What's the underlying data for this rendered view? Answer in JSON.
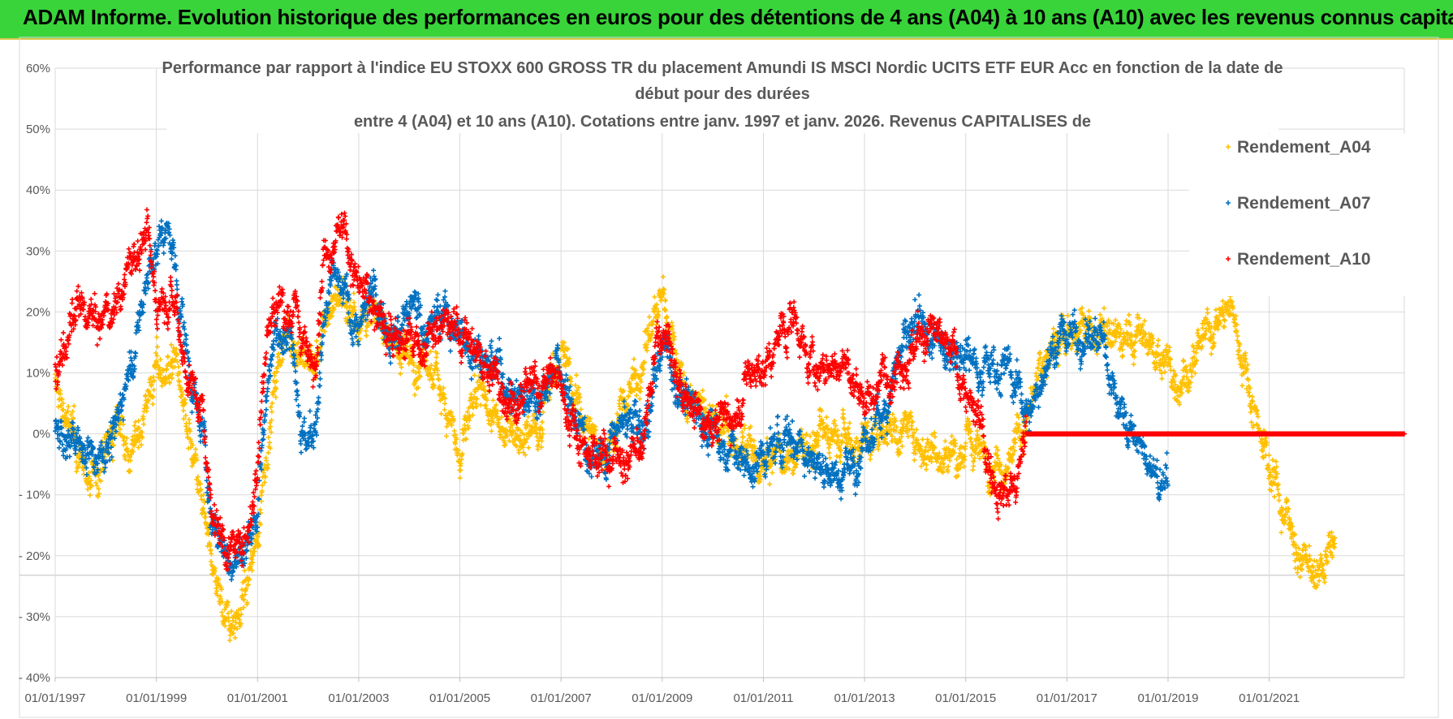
{
  "banner": {
    "title": "ADAM Informe. Evolution historique des performances en euros pour des détentions de 4 ans (A04) à 10 ans (A10) avec les revenus connus capitalisés"
  },
  "chart_data": {
    "type": "scatter",
    "title_lines": [
      "Performance par rapport à l'indice EU STOXX 600 GROSS TR  du placement Amundi IS MSCI Nordic UCITS ETF EUR Acc  en fonction de la date de",
      "début pour des durées",
      "entre 4 (A04) et 10 ans (A10).  Cotations entre janv. 1997 et janv. 2026. Revenus CAPITALISES de"
    ],
    "xlabel": "",
    "ylabel": "",
    "xlim": [
      1997.0,
      2023.67
    ],
    "ylim": [
      -40,
      60
    ],
    "x_ticks": [
      1997,
      1999,
      2001,
      2003,
      2005,
      2007,
      2009,
      2011,
      2013,
      2015,
      2017,
      2019,
      2021
    ],
    "x_tick_labels": [
      "01/01/1997",
      "01/01/1999",
      "01/01/2001",
      "01/01/2003",
      "01/01/2005",
      "01/01/2007",
      "01/01/2009",
      "01/01/2011",
      "01/01/2013",
      "01/01/2015",
      "01/01/2017",
      "01/01/2019",
      "01/01/2021"
    ],
    "y_ticks": [
      60,
      50,
      40,
      30,
      20,
      10,
      0,
      -10,
      -20,
      -30,
      -40
    ],
    "y_tick_labels": [
      "60%",
      "50%",
      "40%",
      "30%",
      "20%",
      "10%",
      "0%",
      "- 10%",
      "- 20%",
      "- 30%",
      "- 40%"
    ],
    "grid": true,
    "legend_position": "top-right",
    "marker": "+",
    "series": [
      {
        "name": "Rendement_A04",
        "color": "#ffc000",
        "start": 1997.0,
        "end": 2022.3,
        "anchors": [
          [
            1997.0,
            8
          ],
          [
            1997.4,
            -2
          ],
          [
            1997.7,
            -8
          ],
          [
            1998.0,
            -4
          ],
          [
            1998.3,
            3
          ],
          [
            1998.5,
            -5
          ],
          [
            1998.8,
            6
          ],
          [
            1999.0,
            10
          ],
          [
            1999.4,
            12
          ],
          [
            1999.6,
            0
          ],
          [
            1999.8,
            -8
          ],
          [
            2000.0,
            -18
          ],
          [
            2000.3,
            -28
          ],
          [
            2000.5,
            -30
          ],
          [
            2000.8,
            -26
          ],
          [
            2001.0,
            -16
          ],
          [
            2001.2,
            0
          ],
          [
            2001.4,
            10
          ],
          [
            2001.6,
            17
          ],
          [
            2001.9,
            12
          ],
          [
            2002.2,
            12
          ],
          [
            2002.4,
            20
          ],
          [
            2002.6,
            24
          ],
          [
            2002.9,
            20
          ],
          [
            2003.2,
            20
          ],
          [
            2003.5,
            18
          ],
          [
            2003.8,
            14
          ],
          [
            2004.2,
            12
          ],
          [
            2004.6,
            8
          ],
          [
            2004.8,
            5
          ],
          [
            2005.0,
            -5
          ],
          [
            2005.2,
            3
          ],
          [
            2005.5,
            5
          ],
          [
            2005.8,
            0
          ],
          [
            2006.0,
            3
          ],
          [
            2006.3,
            0
          ],
          [
            2006.6,
            3
          ],
          [
            2006.8,
            10
          ],
          [
            2007.0,
            14
          ],
          [
            2007.3,
            5
          ],
          [
            2007.6,
            0
          ],
          [
            2007.9,
            -3
          ],
          [
            2008.2,
            4
          ],
          [
            2008.5,
            10
          ],
          [
            2008.8,
            18
          ],
          [
            2009.0,
            22
          ],
          [
            2009.2,
            16
          ],
          [
            2009.5,
            6
          ],
          [
            2009.9,
            3
          ],
          [
            2010.2,
            0
          ],
          [
            2010.5,
            -2
          ],
          [
            2010.8,
            -5
          ],
          [
            2011.0,
            -6
          ],
          [
            2011.3,
            -4
          ],
          [
            2011.6,
            -3
          ],
          [
            2011.9,
            -2
          ],
          [
            2012.2,
            0
          ],
          [
            2012.5,
            3
          ],
          [
            2012.8,
            -1
          ],
          [
            2013.1,
            0
          ],
          [
            2013.5,
            2
          ],
          [
            2013.9,
            0
          ],
          [
            2014.3,
            -2
          ],
          [
            2014.7,
            -3
          ],
          [
            2015.1,
            -2
          ],
          [
            2015.5,
            -4
          ],
          [
            2015.9,
            -3
          ],
          [
            2016.2,
            2
          ],
          [
            2016.5,
            10
          ],
          [
            2016.9,
            18
          ],
          [
            2017.2,
            16
          ],
          [
            2017.5,
            17
          ],
          [
            2017.8,
            16
          ],
          [
            2018.1,
            15
          ],
          [
            2018.5,
            16
          ],
          [
            2018.9,
            12
          ],
          [
            2019.2,
            10
          ],
          [
            2019.6,
            12
          ],
          [
            2019.9,
            18
          ],
          [
            2020.2,
            20
          ],
          [
            2020.4,
            16
          ],
          [
            2020.6,
            8
          ],
          [
            2020.8,
            2
          ],
          [
            2021.0,
            -5
          ],
          [
            2021.3,
            -12
          ],
          [
            2021.6,
            -20
          ],
          [
            2021.9,
            -24
          ],
          [
            2022.1,
            -22
          ],
          [
            2022.3,
            -17
          ]
        ]
      },
      {
        "name": "Rendement_A07",
        "color": "#0070c0",
        "start": 1997.0,
        "end": 2019.0,
        "anchors": [
          [
            1997.0,
            0
          ],
          [
            1997.2,
            -3
          ],
          [
            1997.4,
            0
          ],
          [
            1997.6,
            -3
          ],
          [
            1997.9,
            -2
          ],
          [
            1998.2,
            0
          ],
          [
            1998.4,
            10
          ],
          [
            1998.6,
            15
          ],
          [
            1998.8,
            25
          ],
          [
            1999.0,
            30
          ],
          [
            1999.2,
            34
          ],
          [
            1999.5,
            20
          ],
          [
            1999.7,
            8
          ],
          [
            1999.9,
            2
          ],
          [
            2000.1,
            -15
          ],
          [
            2000.4,
            -20
          ],
          [
            2000.6,
            -22
          ],
          [
            2000.8,
            -18
          ],
          [
            2001.0,
            -12
          ],
          [
            2001.2,
            10
          ],
          [
            2001.5,
            20
          ],
          [
            2001.7,
            18
          ],
          [
            2001.9,
            0
          ],
          [
            2002.1,
            -3
          ],
          [
            2002.3,
            15
          ],
          [
            2002.5,
            26
          ],
          [
            2002.8,
            20
          ],
          [
            2003.0,
            18
          ],
          [
            2003.3,
            22
          ],
          [
            2003.5,
            20
          ],
          [
            2003.8,
            18
          ],
          [
            2004.1,
            20
          ],
          [
            2004.4,
            18
          ],
          [
            2004.7,
            20
          ],
          [
            2005.0,
            16
          ],
          [
            2005.4,
            14
          ],
          [
            2005.7,
            12
          ],
          [
            2006.0,
            8
          ],
          [
            2006.3,
            6
          ],
          [
            2006.6,
            8
          ],
          [
            2006.9,
            12
          ],
          [
            2007.2,
            4
          ],
          [
            2007.5,
            -2
          ],
          [
            2007.8,
            -3
          ],
          [
            2008.1,
            0
          ],
          [
            2008.4,
            2
          ],
          [
            2008.7,
            0
          ],
          [
            2008.9,
            10
          ],
          [
            2009.1,
            15
          ],
          [
            2009.3,
            8
          ],
          [
            2009.6,
            4
          ],
          [
            2009.9,
            2
          ],
          [
            2010.2,
            -2
          ],
          [
            2010.5,
            -4
          ],
          [
            2010.8,
            -6
          ],
          [
            2011.0,
            -4
          ],
          [
            2011.3,
            -2
          ],
          [
            2011.6,
            0
          ],
          [
            2011.9,
            -3
          ],
          [
            2012.2,
            -5
          ],
          [
            2012.5,
            -7
          ],
          [
            2012.8,
            -4
          ],
          [
            2013.1,
            -2
          ],
          [
            2013.4,
            5
          ],
          [
            2013.7,
            14
          ],
          [
            2014.0,
            16
          ],
          [
            2014.3,
            15
          ],
          [
            2014.6,
            14
          ],
          [
            2014.9,
            15
          ],
          [
            2015.2,
            12
          ],
          [
            2015.5,
            12
          ],
          [
            2015.8,
            11
          ],
          [
            2016.1,
            6
          ],
          [
            2016.3,
            3
          ],
          [
            2016.5,
            10
          ],
          [
            2016.8,
            15
          ],
          [
            2017.1,
            17
          ],
          [
            2017.4,
            16
          ],
          [
            2017.7,
            15
          ],
          [
            2017.9,
            8
          ],
          [
            2018.2,
            2
          ],
          [
            2018.4,
            -2
          ],
          [
            2018.6,
            -5
          ],
          [
            2018.8,
            -8
          ],
          [
            2019.0,
            -10
          ]
        ]
      },
      {
        "name": "Rendement_A10",
        "color": "#ff0000",
        "start": 1997.0,
        "end": 2023.67,
        "anchors": [
          [
            1997.0,
            10
          ],
          [
            1997.3,
            17
          ],
          [
            1997.6,
            20
          ],
          [
            1997.9,
            17
          ],
          [
            1998.2,
            22
          ],
          [
            1998.5,
            28
          ],
          [
            1998.8,
            33
          ],
          [
            1999.0,
            22
          ],
          [
            1999.2,
            25
          ],
          [
            1999.4,
            22
          ],
          [
            1999.6,
            10
          ],
          [
            1999.9,
            5
          ],
          [
            2000.1,
            -12
          ],
          [
            2000.4,
            -18
          ],
          [
            2000.6,
            -20
          ],
          [
            2000.8,
            -15
          ],
          [
            2001.0,
            -5
          ],
          [
            2001.2,
            20
          ],
          [
            2001.5,
            22
          ],
          [
            2001.8,
            18
          ],
          [
            2002.1,
            10
          ],
          [
            2002.3,
            30
          ],
          [
            2002.6,
            35
          ],
          [
            2002.8,
            30
          ],
          [
            2003.0,
            24
          ],
          [
            2003.3,
            20
          ],
          [
            2003.6,
            18
          ],
          [
            2003.9,
            15
          ],
          [
            2004.2,
            14
          ],
          [
            2004.5,
            16
          ],
          [
            2004.8,
            18
          ],
          [
            2005.0,
            16
          ],
          [
            2005.3,
            14
          ],
          [
            2005.6,
            10
          ],
          [
            2005.9,
            8
          ],
          [
            2006.2,
            5
          ],
          [
            2006.5,
            7
          ],
          [
            2006.8,
            10
          ],
          [
            2007.1,
            5
          ],
          [
            2007.4,
            -1
          ],
          [
            2007.7,
            -3
          ],
          [
            2008.0,
            -3
          ],
          [
            2008.3,
            -4
          ],
          [
            2008.6,
            -3
          ],
          [
            2008.9,
            15
          ],
          [
            2009.1,
            15
          ],
          [
            2009.3,
            8
          ],
          [
            2009.6,
            5
          ],
          [
            2009.9,
            3
          ],
          [
            2010.2,
            2
          ],
          [
            2010.5,
            4
          ],
          [
            2010.7,
            10
          ],
          [
            2011.0,
            10
          ],
          [
            2011.3,
            15
          ],
          [
            2011.6,
            20
          ],
          [
            2011.9,
            12
          ],
          [
            2012.2,
            10
          ],
          [
            2012.5,
            12
          ],
          [
            2012.8,
            8
          ],
          [
            2013.1,
            6
          ],
          [
            2013.4,
            10
          ],
          [
            2013.7,
            14
          ],
          [
            2014.0,
            14
          ],
          [
            2014.3,
            16
          ],
          [
            2014.6,
            14
          ],
          [
            2014.9,
            10
          ],
          [
            2015.2,
            2
          ],
          [
            2015.5,
            -5
          ],
          [
            2015.8,
            -8
          ],
          [
            2016.0,
            -10
          ],
          [
            2016.2,
            0
          ]
        ],
        "flat_value": 0,
        "flat_from": 2016.2
      }
    ]
  }
}
